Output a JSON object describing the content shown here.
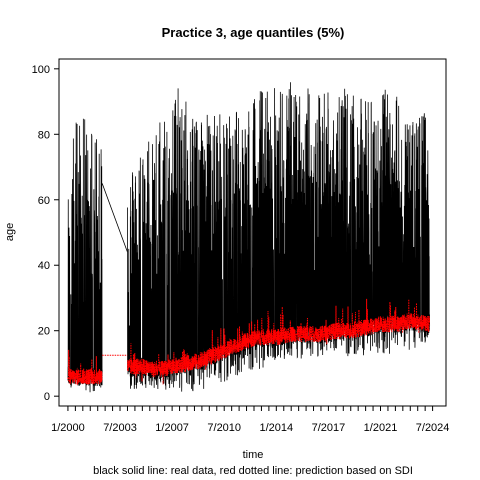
{
  "chart_data": {
    "type": "line",
    "title": "Practice 3, age quantiles (5%)",
    "xlabel": "time",
    "ylabel": "age",
    "footnote": "black solid line: real data, red dotted line: prediction based on SDI",
    "xlim": [
      1999.4,
      2025.4
    ],
    "ylim": [
      -3,
      103
    ],
    "y_ticks": [
      0,
      20,
      40,
      60,
      80,
      100
    ],
    "x_tick_labels": [
      {
        "label": "1/2000",
        "x": 2000.0
      },
      {
        "label": "7/2003",
        "x": 2003.5
      },
      {
        "label": "1/2007",
        "x": 2007.0
      },
      {
        "label": "7/2010",
        "x": 2010.5
      },
      {
        "label": "1/2014",
        "x": 2014.0
      },
      {
        "label": "7/2017",
        "x": 2017.5
      },
      {
        "label": "1/2021",
        "x": 2021.0
      },
      {
        "label": "7/2024",
        "x": 2024.5
      }
    ],
    "minor_tick_step": 0.5,
    "minor_tick_range": [
      2000.0,
      2024.5
    ],
    "series": [
      {
        "name": "real data",
        "color": "#000000",
        "style": "solid",
        "segments": [
          {
            "x": [
              2000.0,
              2000.5,
              2001.0,
              2001.5,
              2002.0,
              2002.3
            ],
            "upper": [
              62,
              88,
              85,
              86,
              85,
              88
            ],
            "lower": [
              3,
              2,
              2,
              1,
              2,
              2
            ],
            "center": [
              6,
              6,
              6,
              6,
              6,
              6
            ]
          },
          {
            "x": [
              2002.3,
              2004.0
            ],
            "upper": [
              65,
              44
            ],
            "lower": [
              65,
              44
            ],
            "center": [
              65,
              44
            ]
          },
          {
            "x": [
              2004.0,
              2005.0,
              2006.0,
              2007.0,
              2008.0,
              2009.0,
              2010.0,
              2011.0,
              2012.0,
              2013.0,
              2014.0,
              2015.0,
              2016.0,
              2017.0,
              2018.0,
              2019.0,
              2020.0,
              2021.0,
              2022.0,
              2023.0,
              2024.3
            ],
            "upper": [
              67,
              78,
              83,
              97,
              90,
              88,
              86,
              89,
              90,
              95,
              95,
              97,
              95,
              95,
              97,
              92,
              91,
              94,
              93,
              84,
              88
            ],
            "lower": [
              2,
              2,
              2,
              2,
              1,
              2,
              3,
              3,
              8,
              8,
              11,
              11,
              11,
              12,
              13,
              12,
              12,
              12,
              13,
              14,
              17
            ],
            "center": [
              9,
              9,
              8,
              9,
              10,
              11,
              13,
              15,
              17,
              18,
              18,
              19,
              19,
              19,
              20,
              20,
              21,
              22,
              22,
              23,
              22
            ]
          }
        ]
      },
      {
        "name": "prediction based on SDI",
        "color": "#ff0000",
        "style": "dotted",
        "segments": [
          {
            "x": [
              2000.0,
              2000.5,
              2001.0,
              2001.5,
              2002.0,
              2002.3
            ],
            "center": [
              6,
              6,
              6,
              6,
              6,
              6
            ]
          },
          {
            "x": [
              2002.3,
              2004.0
            ],
            "center": [
              12.5,
              12.5
            ]
          },
          {
            "x": [
              2004.0,
              2005.0,
              2006.0,
              2007.0,
              2008.0,
              2009.0,
              2010.0,
              2011.0,
              2012.0,
              2013.0,
              2014.0,
              2015.0,
              2016.0,
              2017.0,
              2018.0,
              2019.0,
              2020.0,
              2021.0,
              2022.0,
              2023.0,
              2024.3
            ],
            "center": [
              9,
              9,
              8,
              9,
              10,
              11,
              13,
              15,
              17,
              18,
              18,
              19,
              19,
              19,
              20,
              20,
              21,
              22,
              22,
              23,
              22
            ]
          }
        ]
      }
    ],
    "grid": false,
    "legend": "none"
  }
}
